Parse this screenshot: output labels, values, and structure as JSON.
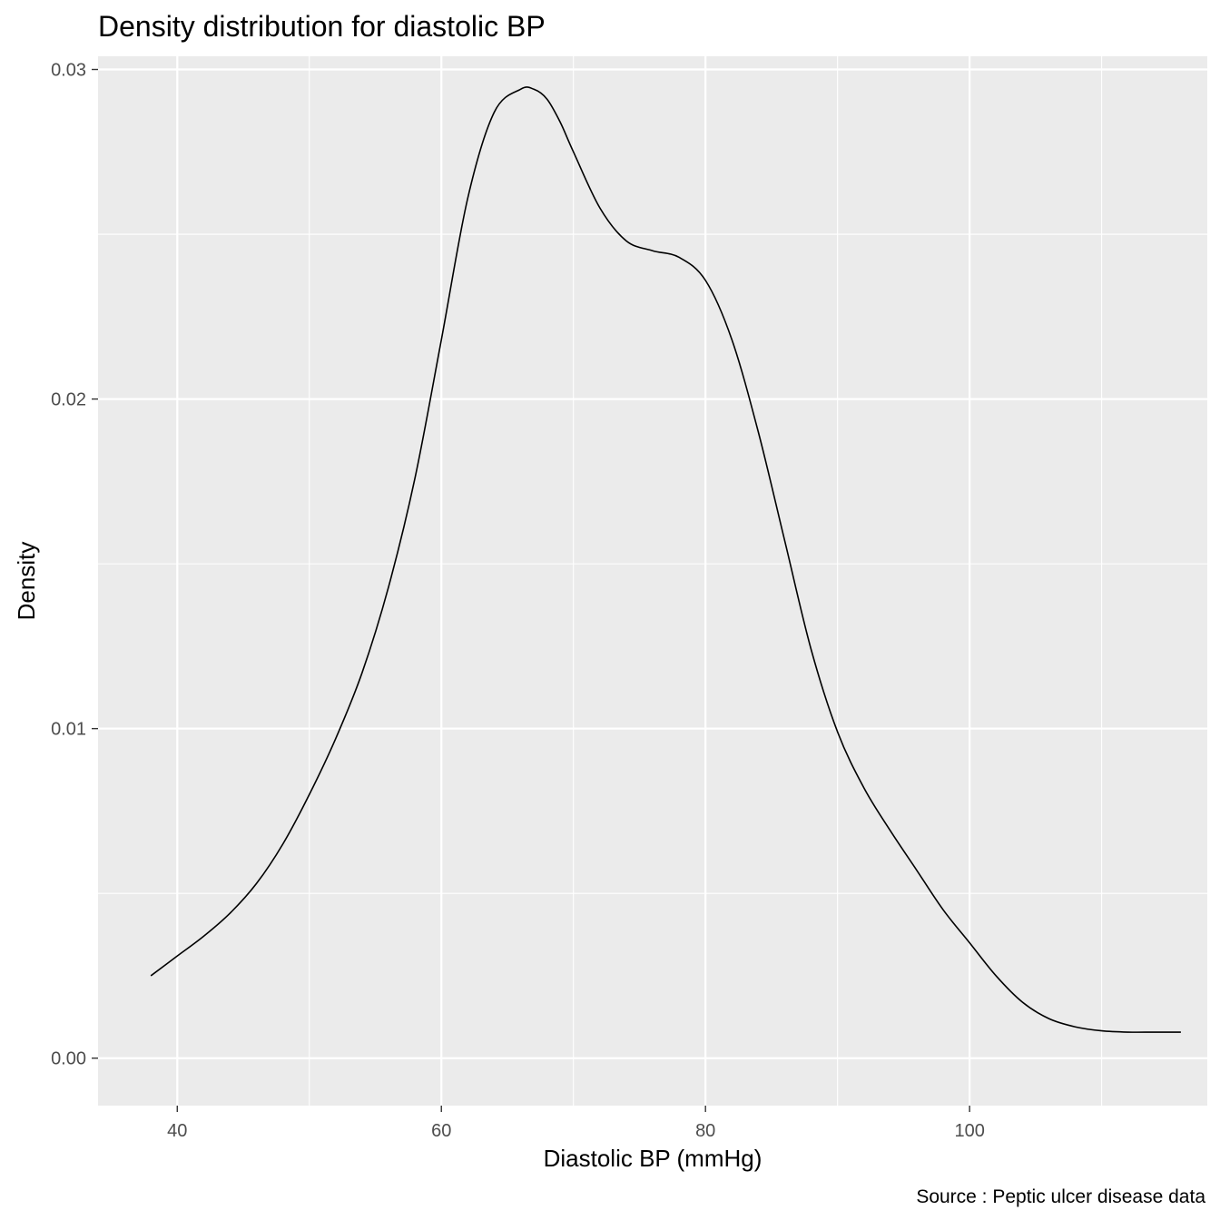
{
  "chart_data": {
    "type": "line",
    "title": "Density distribution for diastolic BP",
    "xlabel": "Diastolic BP (mmHg)",
    "ylabel": "Density",
    "caption": "Source : Peptic ulcer disease data",
    "xlim": [
      34,
      118
    ],
    "ylim": [
      -0.00144,
      0.0304
    ],
    "x_ticks": [
      40,
      60,
      80,
      100
    ],
    "x_tick_labels": [
      "40",
      "60",
      "80",
      "100"
    ],
    "x_minor_ticks": [
      50,
      70,
      90,
      110
    ],
    "y_ticks": [
      0.0,
      0.01,
      0.02,
      0.03
    ],
    "y_tick_labels": [
      "0.00",
      "0.01",
      "0.02",
      "0.03"
    ],
    "y_minor_ticks": [
      0.005,
      0.015,
      0.025
    ],
    "grid": true,
    "legend": "none",
    "colors": {
      "panel_background": "#ebebeb",
      "grid_line": "#ffffff",
      "line": "#000000",
      "tick_label": "#4d4d4d"
    },
    "series": [
      {
        "x": [
          38,
          40,
          42,
          44,
          46,
          48,
          50,
          52,
          54,
          56,
          58,
          60,
          62,
          64,
          66,
          67,
          68,
          69,
          70,
          72,
          74,
          76,
          78,
          80,
          82,
          84,
          86,
          88,
          90,
          92,
          94,
          96,
          98,
          100,
          102,
          104,
          106,
          108,
          110,
          112,
          114,
          116
        ],
        "y": [
          0.0025,
          0.0031,
          0.0037,
          0.0044,
          0.0053,
          0.0065,
          0.008,
          0.0097,
          0.0117,
          0.0143,
          0.0176,
          0.0218,
          0.0261,
          0.0287,
          0.0294,
          0.0294,
          0.0291,
          0.0284,
          0.0275,
          0.0258,
          0.0248,
          0.0245,
          0.0243,
          0.0236,
          0.0218,
          0.019,
          0.0157,
          0.0124,
          0.0099,
          0.0082,
          0.0069,
          0.0057,
          0.0045,
          0.0035,
          0.0025,
          0.0017,
          0.0012,
          0.00095,
          0.00083,
          0.00079,
          0.00079,
          0.00079
        ]
      }
    ]
  }
}
